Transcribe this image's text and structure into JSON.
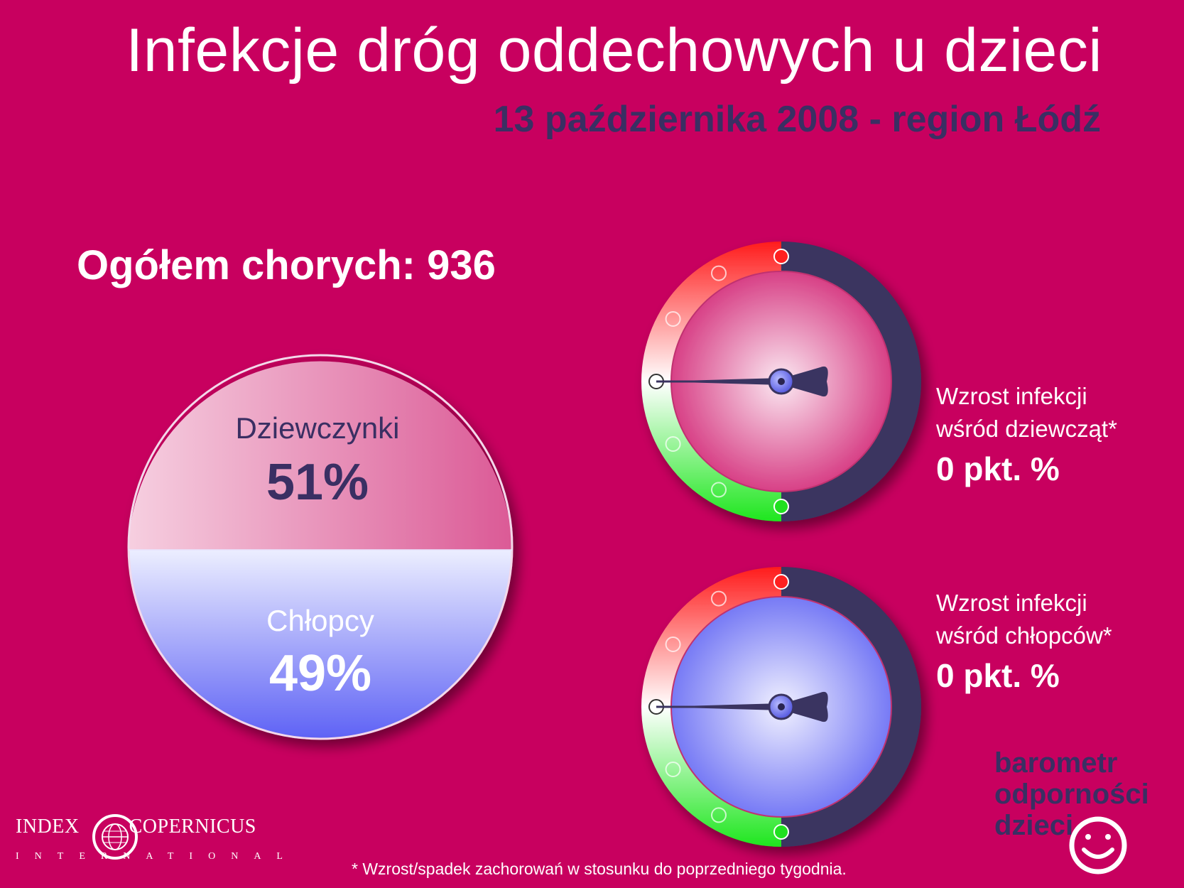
{
  "header": {
    "title": "Infekcje dróg oddechowych u dzieci",
    "subtitle": "13 października 2008 - region Łódź"
  },
  "total_label": "Ogółem chorych: 936",
  "chart_data": [
    {
      "type": "pie",
      "slices": [
        {
          "label": "Dziewczynki",
          "value": 51,
          "value_label": "51%",
          "color": "#e07aa8"
        },
        {
          "label": "Chłopcy",
          "value": 49,
          "value_label": "49%",
          "color": "#8a8cf5"
        }
      ]
    },
    {
      "type": "gauge",
      "name": "girls",
      "label_line1": "Wzrost infekcji",
      "label_line2": "wśród dziewcząt*",
      "value": 0,
      "value_label": "0 pkt. %",
      "face_color": "#d8307a"
    },
    {
      "type": "gauge",
      "name": "boys",
      "label_line1": "Wzrost infekcji",
      "label_line2": "wśród chłopców*",
      "value": 0,
      "value_label": "0 pkt. %",
      "face_color": "#6f72f2"
    }
  ],
  "brand": {
    "line1": "barometr",
    "line2": "odporności",
    "line3": "dzieci"
  },
  "logo": {
    "left_word": "INDEX",
    "right_word": "COPERNICUS",
    "sub": "INTERNATIONAL"
  },
  "footnote": "* Wzrost/spadek zachorowań w stosunku do poprzedniego tygodnia.",
  "colors": {
    "background": "#c8005f",
    "dark": "#3a2f63",
    "red": "#ff2020",
    "green": "#20e020"
  }
}
